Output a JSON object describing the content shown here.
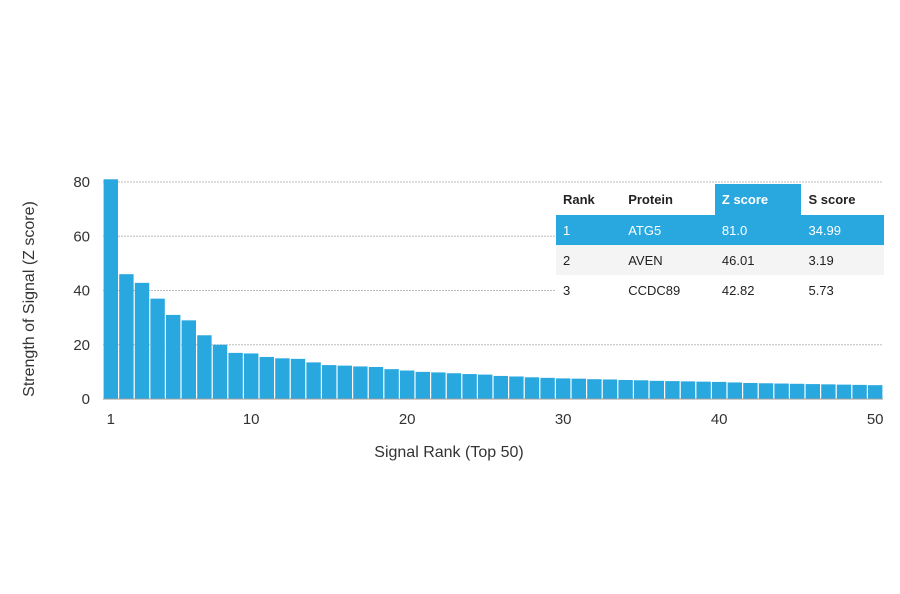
{
  "chart_data": {
    "type": "bar",
    "xlabel": "Signal Rank (Top 50)",
    "ylabel": "Strength of Signal (Z score)",
    "ylim": [
      0,
      80
    ],
    "y_ticks": [
      "0",
      "20",
      "40",
      "60",
      "80"
    ],
    "x_ticks": [
      "1",
      "10",
      "20",
      "30",
      "40",
      "50"
    ],
    "x_tick_values": [
      1,
      10,
      20,
      30,
      40,
      50
    ],
    "grid": true,
    "bar_color": "#29a8e0",
    "x": [
      1,
      2,
      3,
      4,
      5,
      6,
      7,
      8,
      9,
      10,
      11,
      12,
      13,
      14,
      15,
      16,
      17,
      18,
      19,
      20,
      21,
      22,
      23,
      24,
      25,
      26,
      27,
      28,
      29,
      30,
      31,
      32,
      33,
      34,
      35,
      36,
      37,
      38,
      39,
      40,
      41,
      42,
      43,
      44,
      45,
      46,
      47,
      48,
      49,
      50
    ],
    "values": [
      81.0,
      46.01,
      42.82,
      37,
      31,
      29,
      23.5,
      20,
      17,
      16.8,
      15.5,
      15,
      14.8,
      13.5,
      12.5,
      12.3,
      12,
      11.8,
      11,
      10.5,
      10,
      9.8,
      9.5,
      9.2,
      9,
      8.5,
      8.3,
      8,
      7.8,
      7.6,
      7.5,
      7.3,
      7.2,
      7,
      6.9,
      6.7,
      6.6,
      6.5,
      6.4,
      6.3,
      6.1,
      5.9,
      5.8,
      5.7,
      5.6,
      5.5,
      5.4,
      5.3,
      5.2,
      5.1
    ]
  },
  "table": {
    "headers": [
      "Rank",
      "Protein",
      "Z score",
      "S score"
    ],
    "rows": [
      [
        "1",
        "ATG5",
        "81.0",
        "34.99"
      ],
      [
        "2",
        "AVEN",
        "46.01",
        "3.19"
      ],
      [
        "3",
        "CCDC89",
        "42.82",
        "5.73"
      ]
    ],
    "highlight_color": "#29a8e0"
  }
}
